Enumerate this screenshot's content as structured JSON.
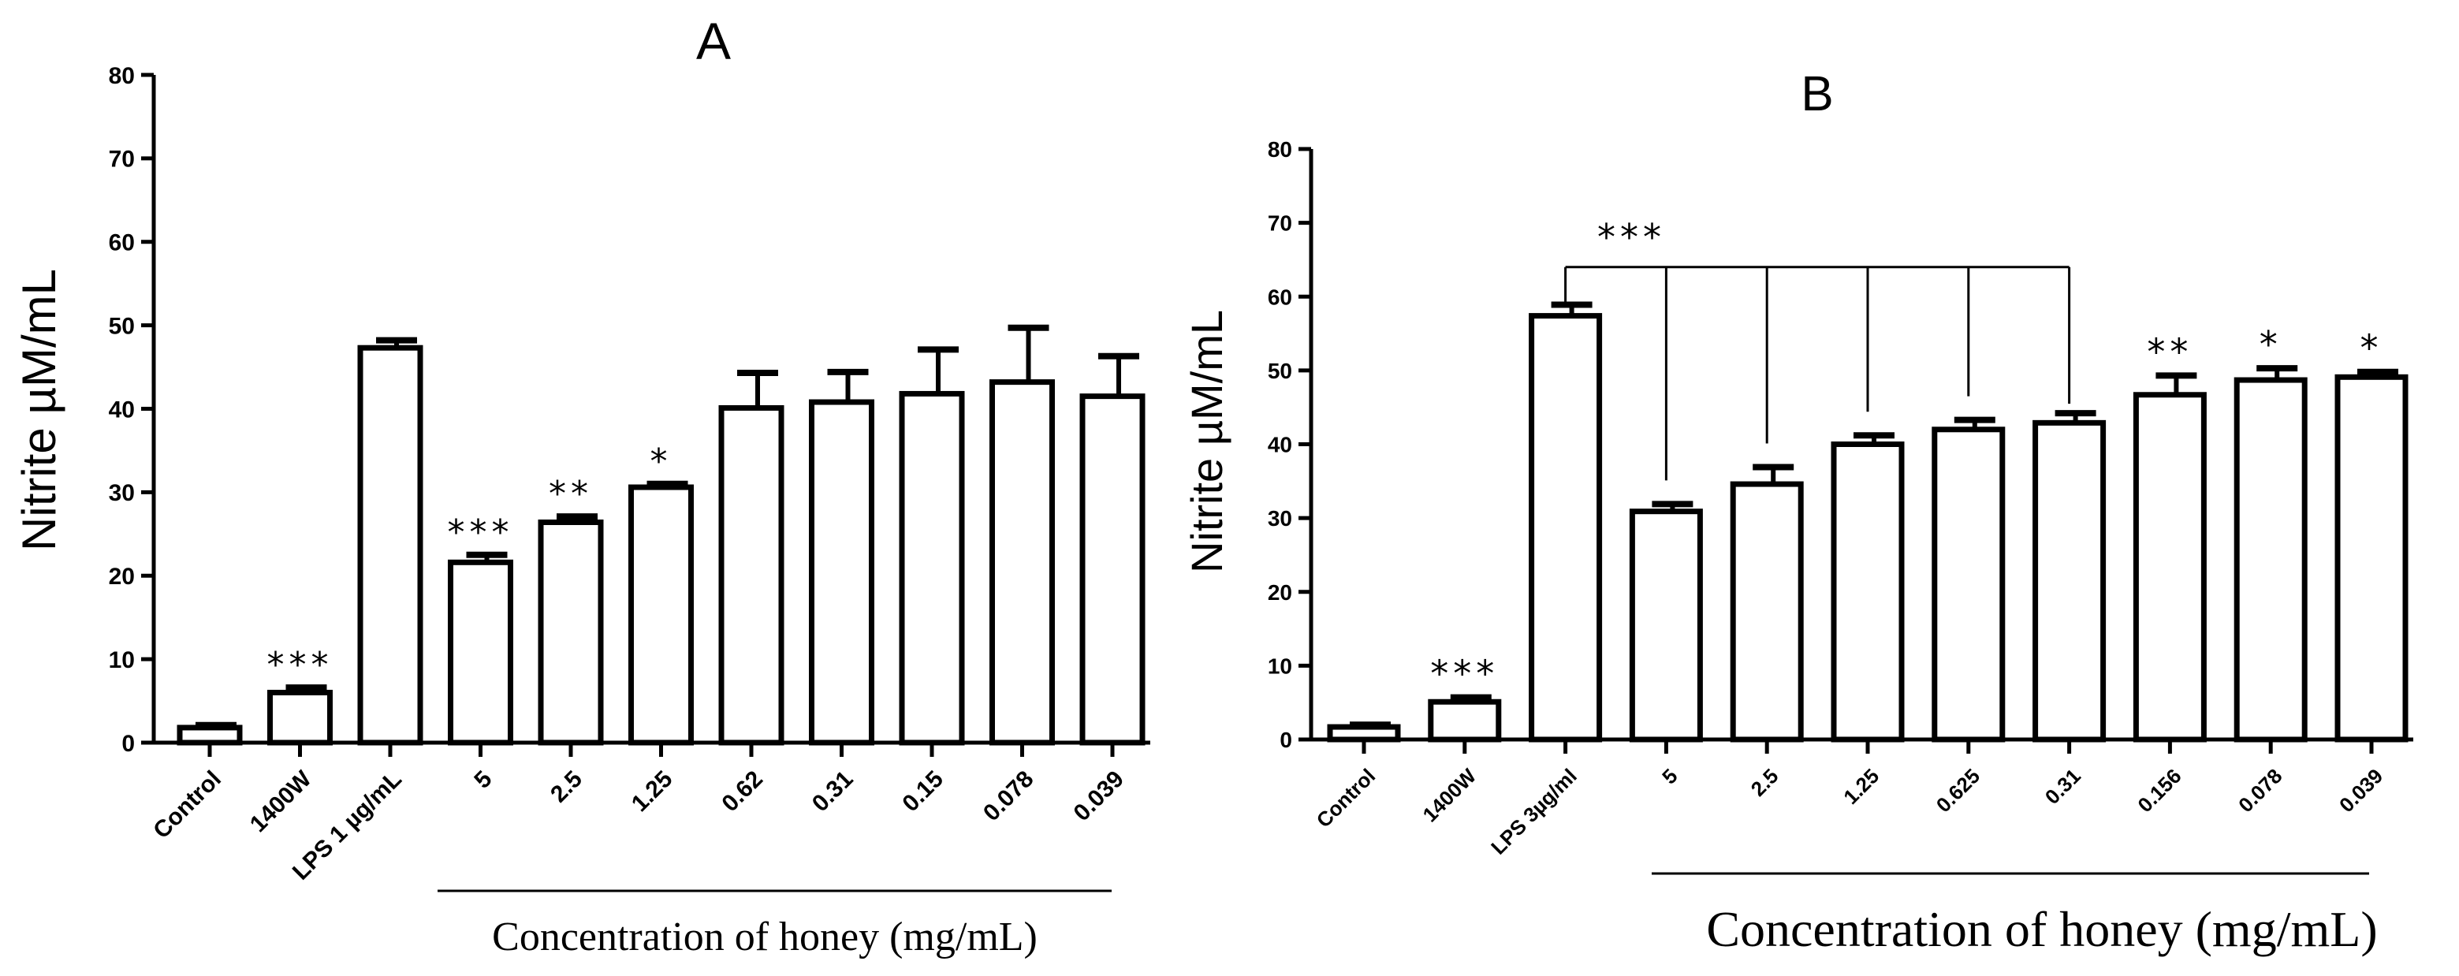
{
  "chart_data": [
    {
      "panel": "A",
      "type": "bar",
      "title": "A",
      "ylabel": "Nitrite  µM/mL",
      "xlabel": "Concentration of honey (mg/mL)",
      "ylim": [
        0,
        80
      ],
      "yticks": [
        "0",
        "10",
        "20",
        "30",
        "40",
        "50",
        "60",
        "70",
        "80"
      ],
      "categories": [
        "Control",
        "1400W",
        "LPS 1 µg/mL",
        "5",
        "2.5",
        "1.25",
        "0.62",
        "0.31",
        "0.15",
        "0.078",
        "0.039"
      ],
      "values": [
        1.8,
        6.0,
        47.3,
        21.6,
        26.4,
        30.6,
        40.1,
        40.8,
        41.8,
        43.2,
        41.5
      ],
      "errors": [
        0.3,
        0.6,
        0.9,
        0.9,
        0.7,
        0.4,
        4.2,
        3.6,
        5.3,
        6.5,
        4.8
      ],
      "significance": [
        "",
        "***",
        "",
        "***",
        "**",
        "*",
        "",
        "",
        "",
        "",
        ""
      ]
    },
    {
      "panel": "B",
      "type": "bar",
      "title": "B",
      "ylabel": "Nitrite µM/mL",
      "xlabel": "Concentration of honey (mg/mL)",
      "ylim": [
        0,
        80
      ],
      "yticks": [
        "0",
        "10",
        "20",
        "30",
        "40",
        "50",
        "60",
        "70",
        "80"
      ],
      "categories": [
        "Control",
        "1400W",
        "LPS 3µg/ml",
        "5",
        "2.5",
        "1.25",
        "0.625",
        "0.31",
        "0.156",
        "0.078",
        "0.039"
      ],
      "values": [
        1.7,
        5.1,
        57.4,
        30.9,
        34.6,
        40.0,
        42.0,
        42.9,
        46.7,
        48.7,
        49.1
      ],
      "errors": [
        0.3,
        0.6,
        1.5,
        1.0,
        2.3,
        1.2,
        1.3,
        1.3,
        2.6,
        1.6,
        0.7
      ],
      "significance": [
        "",
        "***",
        "",
        "",
        "",
        "",
        "",
        "",
        "**",
        "*",
        "*"
      ],
      "bracket": {
        "label": "***",
        "from_index": 2,
        "to_index": 7,
        "y_value": 64
      }
    }
  ]
}
